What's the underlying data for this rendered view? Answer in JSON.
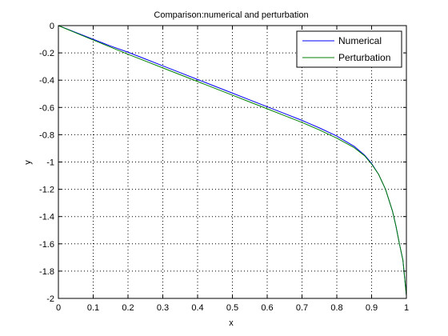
{
  "chart_data": {
    "type": "line",
    "title": "Comparison:numerical and perturbation",
    "xlabel": "x",
    "ylabel": "y",
    "xlim": [
      0,
      1
    ],
    "ylim": [
      -2,
      0
    ],
    "xticks": [
      "0",
      "0.1",
      "0.2",
      "0.3",
      "0.4",
      "0.5",
      "0.6",
      "0.7",
      "0.8",
      "0.9",
      "1"
    ],
    "yticks": [
      "0",
      "-0.2",
      "-0.4",
      "-0.6",
      "-0.8",
      "-1",
      "-1.2",
      "-1.4",
      "-1.6",
      "-1.8",
      "-2"
    ],
    "grid": true,
    "legend_position": "top-right",
    "series": [
      {
        "name": "Numerical",
        "color": "#0000ff",
        "x": [
          0,
          0.05,
          0.1,
          0.15,
          0.2,
          0.25,
          0.3,
          0.35,
          0.4,
          0.45,
          0.5,
          0.55,
          0.6,
          0.65,
          0.7,
          0.75,
          0.8,
          0.85,
          0.88,
          0.9,
          0.92,
          0.94,
          0.96,
          0.97,
          0.98,
          0.99,
          1.0
        ],
        "y": [
          0,
          -0.05,
          -0.1,
          -0.15,
          -0.195,
          -0.245,
          -0.295,
          -0.345,
          -0.395,
          -0.445,
          -0.495,
          -0.545,
          -0.595,
          -0.645,
          -0.695,
          -0.75,
          -0.81,
          -0.885,
          -0.95,
          -1.01,
          -1.09,
          -1.2,
          -1.36,
          -1.47,
          -1.6,
          -1.72,
          -1.98
        ]
      },
      {
        "name": "Perturbation",
        "color": "#008000",
        "x": [
          0,
          0.05,
          0.1,
          0.15,
          0.2,
          0.25,
          0.3,
          0.35,
          0.4,
          0.45,
          0.5,
          0.55,
          0.6,
          0.65,
          0.7,
          0.75,
          0.8,
          0.85,
          0.88,
          0.9,
          0.92,
          0.94,
          0.96,
          0.97,
          0.98,
          0.99,
          1.0
        ],
        "y": [
          0,
          -0.053,
          -0.106,
          -0.158,
          -0.21,
          -0.26,
          -0.31,
          -0.36,
          -0.41,
          -0.46,
          -0.51,
          -0.56,
          -0.61,
          -0.66,
          -0.71,
          -0.765,
          -0.825,
          -0.895,
          -0.955,
          -1.015,
          -1.09,
          -1.2,
          -1.36,
          -1.47,
          -1.6,
          -1.72,
          -1.98
        ]
      }
    ]
  }
}
